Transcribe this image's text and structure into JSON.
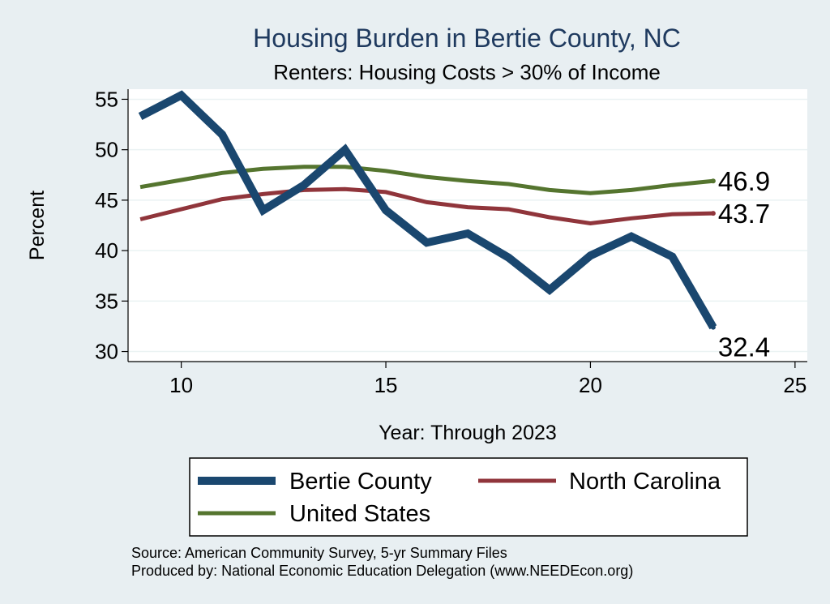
{
  "chart_data": {
    "type": "line",
    "title": "Housing Burden in Bertie County, NC",
    "subtitle": "Renters: Housing Costs > 30% of Income",
    "xlabel": "Year: Through 2023",
    "ylabel": "Percent",
    "xlim": [
      8.7,
      25.3
    ],
    "ylim": [
      29.0,
      56.0
    ],
    "xticks": [
      10,
      15,
      20,
      25
    ],
    "yticks": [
      30,
      35,
      40,
      45,
      50,
      55
    ],
    "x": [
      9,
      10,
      11,
      12,
      13,
      14,
      15,
      16,
      17,
      18,
      19,
      20,
      21,
      22,
      23
    ],
    "series": [
      {
        "name": "Bertie County",
        "color": "#1a476f",
        "values": [
          53.3,
          55.4,
          51.5,
          44.0,
          46.5,
          50.0,
          44.0,
          40.8,
          41.7,
          39.3,
          36.1,
          39.5,
          41.4,
          39.4,
          32.4
        ],
        "end_label": "32.4"
      },
      {
        "name": "North Carolina",
        "color": "#90353b",
        "values": [
          43.1,
          44.1,
          45.1,
          45.6,
          46.0,
          46.1,
          45.8,
          44.8,
          44.3,
          44.1,
          43.3,
          42.7,
          43.2,
          43.6,
          43.7
        ],
        "end_label": "43.7"
      },
      {
        "name": "United States",
        "color": "#55752f",
        "values": [
          46.3,
          47.0,
          47.7,
          48.1,
          48.3,
          48.3,
          47.9,
          47.3,
          46.9,
          46.6,
          46.0,
          45.7,
          46.0,
          46.5,
          46.9
        ],
        "end_label": "46.9"
      }
    ],
    "legend": {
      "placement": "bottom",
      "columns": 2
    },
    "grid": true,
    "source_lines": [
      "Source: American Community Survey, 5-yr Summary Files",
      "Produced by: National Economic Education Delegation (www.NEEDEcon.org)"
    ]
  }
}
